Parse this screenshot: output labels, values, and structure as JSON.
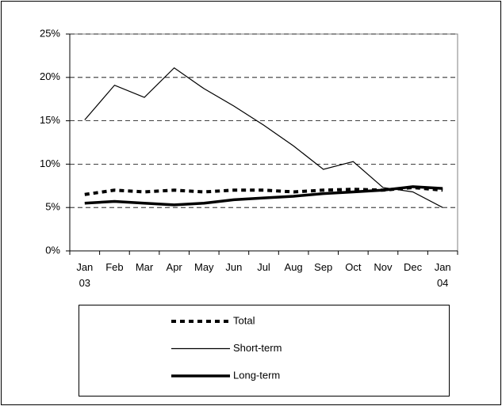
{
  "chart_data": {
    "type": "line",
    "categories": [
      [
        "Jan",
        "03"
      ],
      [
        "Feb"
      ],
      [
        "Mar"
      ],
      [
        "Apr"
      ],
      [
        "May"
      ],
      [
        "Jun"
      ],
      [
        "Jul"
      ],
      [
        "Aug"
      ],
      [
        "Sep"
      ],
      [
        "Oct"
      ],
      [
        "Nov"
      ],
      [
        "Dec"
      ],
      [
        "Jan",
        "04"
      ]
    ],
    "series": [
      {
        "name": "Total",
        "color": "#000000",
        "values": [
          6.5,
          7.0,
          6.8,
          7.0,
          6.8,
          7.0,
          7.0,
          6.8,
          7.0,
          7.1,
          7.0,
          7.3,
          7.0
        ]
      },
      {
        "name": "Short-term",
        "color": "#000000",
        "values": [
          15.1,
          19.1,
          17.7,
          21.1,
          18.7,
          16.7,
          14.5,
          12.1,
          9.4,
          10.3,
          7.3,
          6.8,
          5.0
        ]
      },
      {
        "name": "Long-term",
        "color": "#000000",
        "values": [
          5.5,
          5.7,
          5.5,
          5.3,
          5.5,
          5.9,
          6.1,
          6.3,
          6.6,
          6.8,
          7.0,
          7.4,
          7.2
        ]
      }
    ],
    "ylim": [
      0,
      25
    ],
    "yticks": [
      {
        "value": 0,
        "label": "0%"
      },
      {
        "value": 5,
        "label": "5%"
      },
      {
        "value": 10,
        "label": "10%"
      },
      {
        "value": 15,
        "label": "15%"
      },
      {
        "value": 20,
        "label": "20%"
      },
      {
        "value": 25,
        "label": "25%"
      }
    ],
    "grid": true
  }
}
